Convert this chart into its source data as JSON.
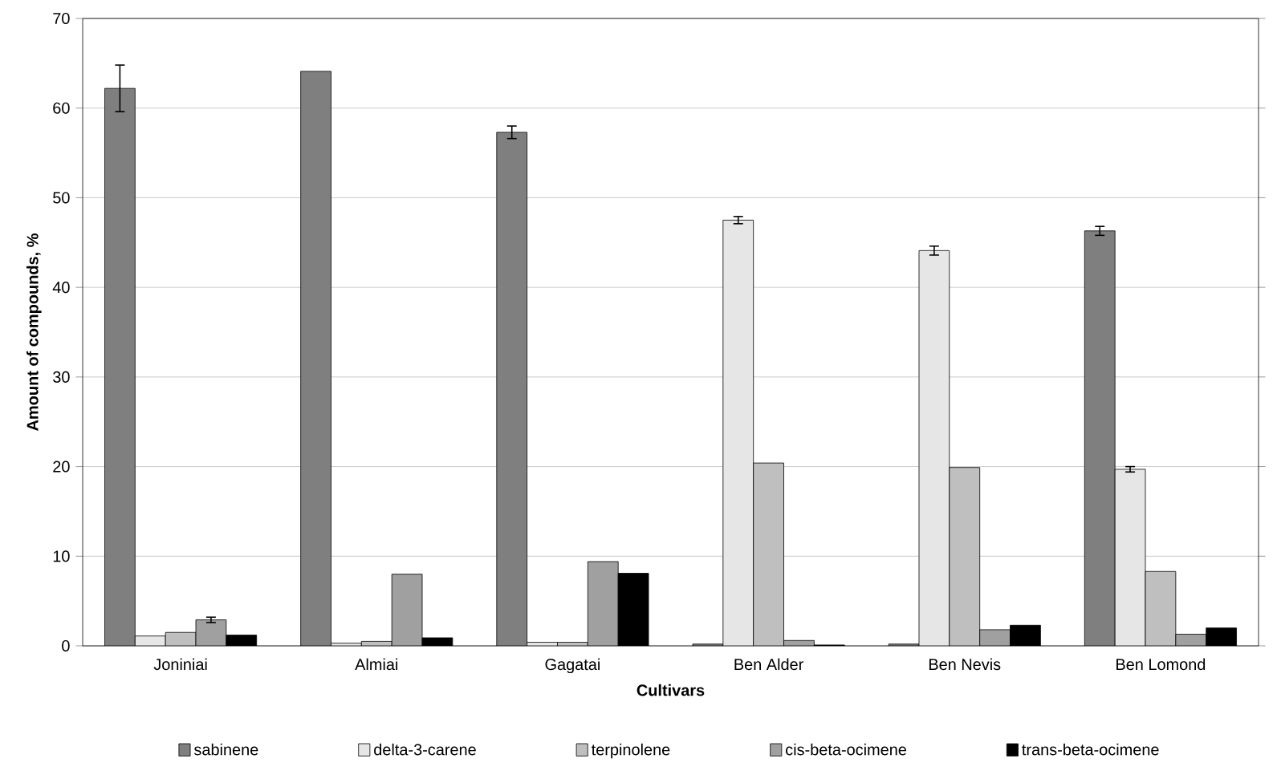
{
  "chart_data": {
    "type": "bar",
    "xlabel": "Cultivars",
    "ylabel": "Amount of compounds, %",
    "categories": [
      "Joniniai",
      "Almiai",
      "Gagatai",
      "Ben Alder",
      "Ben Nevis",
      "Ben Lomond"
    ],
    "series": [
      {
        "name": "sabinene",
        "color": "#7f7f7f",
        "values": [
          62.2,
          64.1,
          57.3,
          0.2,
          0.2,
          46.3
        ],
        "errors": [
          2.6,
          null,
          0.7,
          null,
          null,
          0.5
        ]
      },
      {
        "name": "delta-3-carene",
        "color": "#e6e6e6",
        "values": [
          1.1,
          0.3,
          0.4,
          47.5,
          44.1,
          19.7
        ],
        "errors": [
          null,
          null,
          null,
          0.4,
          0.5,
          0.3
        ]
      },
      {
        "name": "terpinolene",
        "color": "#bfbfbf",
        "values": [
          1.5,
          0.5,
          0.4,
          20.4,
          19.9,
          8.3
        ],
        "errors": [
          null,
          null,
          null,
          null,
          null,
          null
        ]
      },
      {
        "name": "cis-beta-ocimene",
        "color": "#a0a0a0",
        "values": [
          2.9,
          8.0,
          9.4,
          0.6,
          1.8,
          1.3
        ],
        "errors": [
          0.3,
          null,
          null,
          null,
          null,
          null
        ]
      },
      {
        "name": "trans-beta-ocimene",
        "color": "#000000",
        "values": [
          1.2,
          0.9,
          8.1,
          0.1,
          2.3,
          2.0
        ],
        "errors": [
          null,
          null,
          null,
          null,
          null,
          null
        ]
      }
    ],
    "ylim": [
      0,
      70
    ],
    "yticks": [
      0,
      10,
      20,
      30,
      40,
      50,
      60,
      70
    ],
    "grid": "y",
    "legend": "bottom"
  }
}
